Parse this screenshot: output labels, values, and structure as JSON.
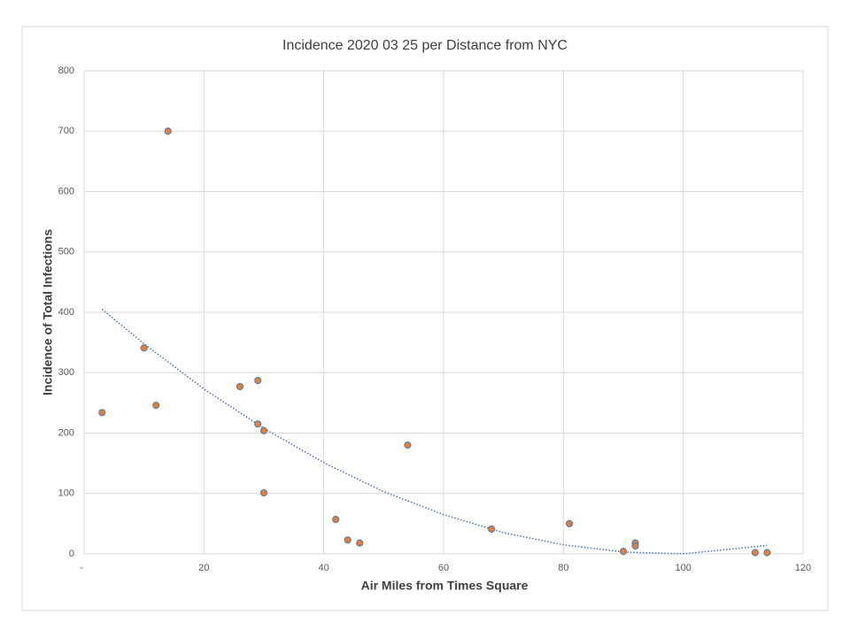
{
  "chart_data": {
    "type": "scatter",
    "title": "Incidence 2020 03 25 per Distance from NYC",
    "x_label": "Air Miles from Times Square",
    "y_label": "Incidence of Total Infections",
    "series": [
      {
        "color": "#ed7d31",
        "edge_color": "#5b7fa8",
        "x": [
          3,
          10,
          12,
          14,
          26,
          29,
          29,
          30,
          30,
          42,
          44,
          46,
          54,
          68,
          81,
          90,
          92,
          92,
          112,
          114
        ],
        "values": [
          234,
          341,
          246,
          700,
          277,
          287,
          215,
          204,
          101,
          57,
          23,
          18,
          180,
          41,
          50,
          4,
          18,
          13,
          2,
          2
        ]
      }
    ],
    "trendline": {
      "color": "#4472c4",
      "x": [
        3,
        10,
        20,
        30,
        40,
        50,
        60,
        70,
        80,
        90,
        100,
        114
      ],
      "values": [
        405,
        348,
        273,
        208,
        151,
        103,
        65,
        35,
        15,
        3,
        0,
        14
      ]
    },
    "xlim": [
      0,
      120
    ],
    "ylim": [
      0,
      800
    ],
    "xticks": [
      {
        "value": 0,
        "label": "-"
      },
      20,
      40,
      60,
      80,
      100,
      120
    ],
    "yticks": [
      0,
      100,
      200,
      300,
      400,
      500,
      600,
      700,
      800
    ],
    "grid": true
  }
}
